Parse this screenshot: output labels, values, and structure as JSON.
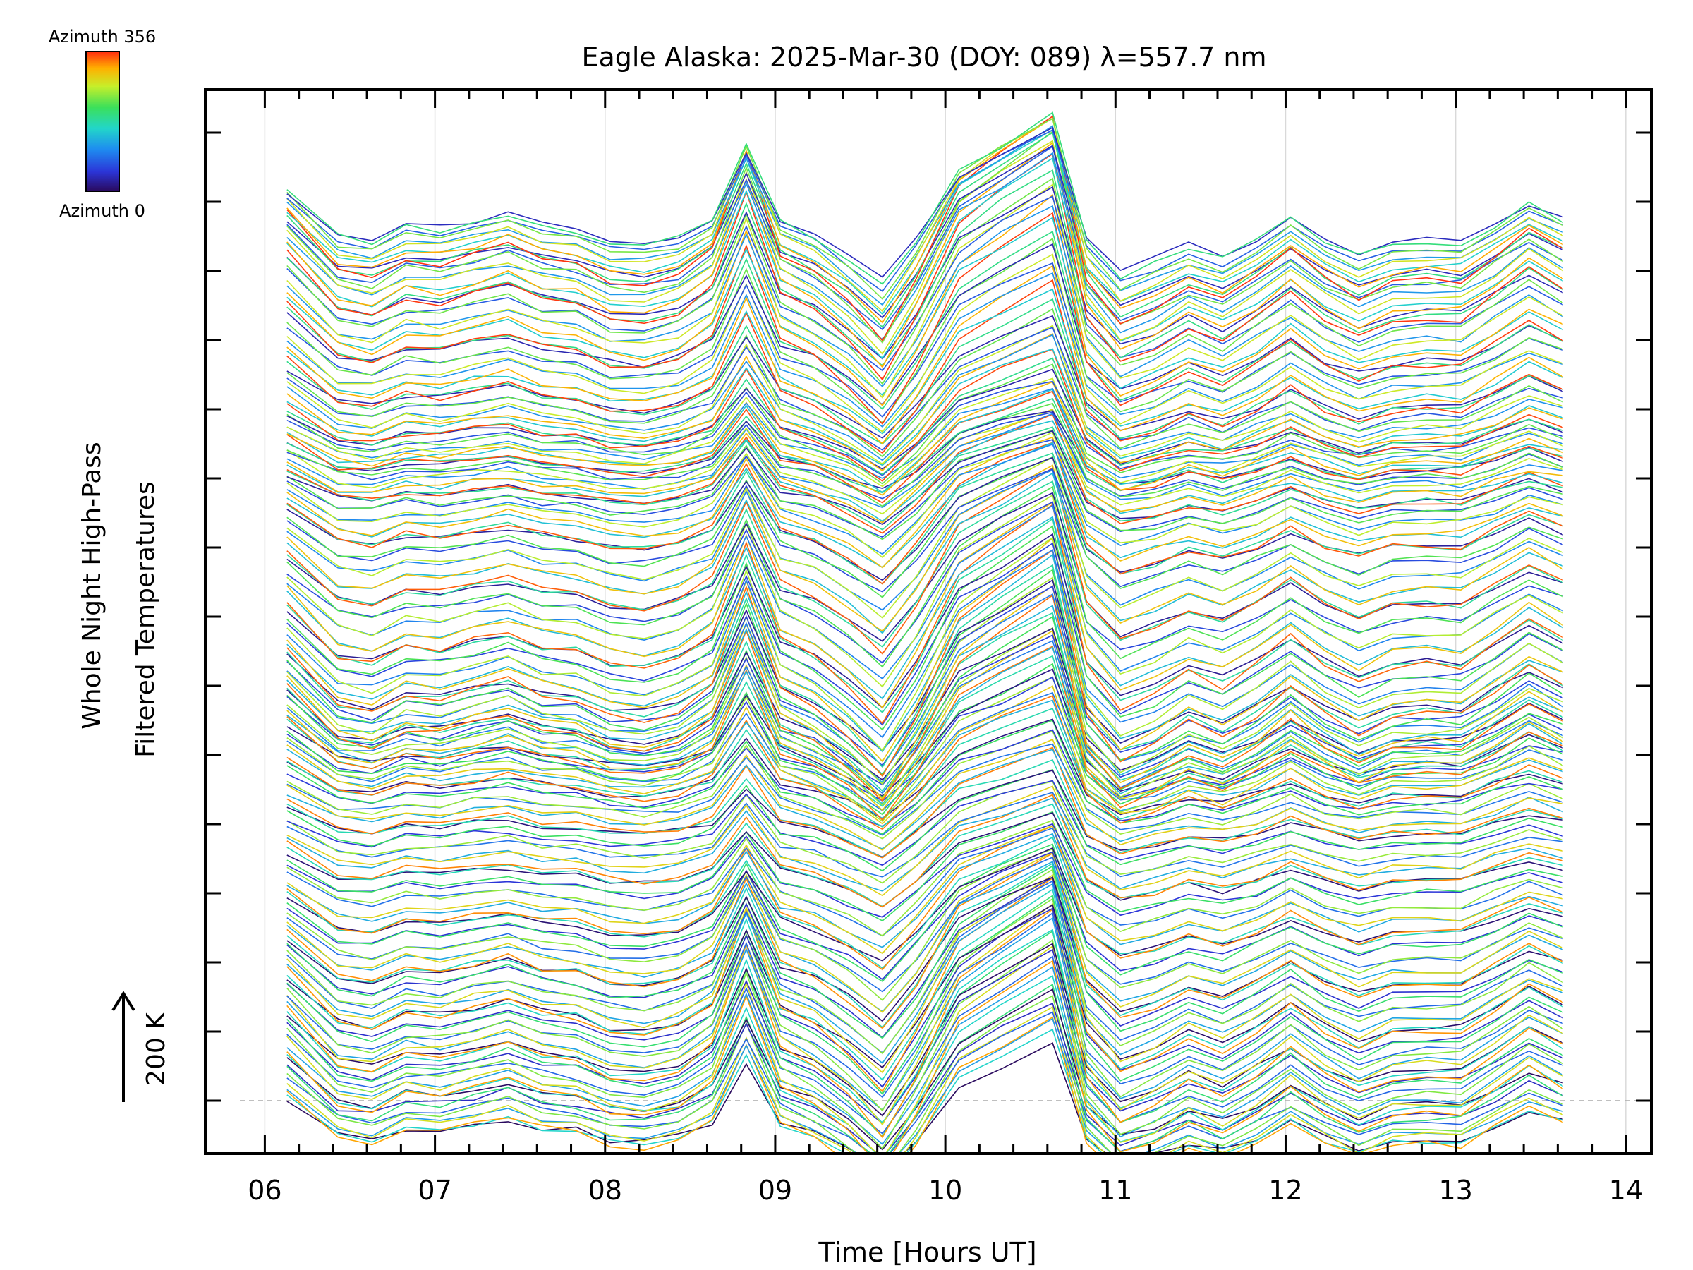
{
  "chart_data": {
    "type": "line",
    "title": "Eagle Alaska: 2025-Mar-30 (DOY: 089) λ=557.7 nm",
    "xlabel": "Time [Hours UT]",
    "ylabel_line1": "Whole Night High-Pass",
    "ylabel_line2": "Filtered Temperatures",
    "scale_label": "200 K",
    "colorbar": {
      "top_label": "Azimuth 356",
      "bottom_label": "Azimuth 0",
      "colormap": "rainbow (purple-blue-cyan-green-yellow-red)"
    },
    "xlim": [
      5.65,
      14.15
    ],
    "xticks": [
      "06",
      "07",
      "08",
      "09",
      "10",
      "11",
      "12",
      "13",
      "14"
    ],
    "x": [
      6.13,
      6.43,
      6.63,
      6.83,
      7.03,
      7.23,
      7.43,
      7.63,
      7.83,
      8.03,
      8.23,
      8.43,
      8.63,
      8.83,
      9.03,
      9.23,
      9.43,
      9.63,
      9.83,
      10.08,
      10.33,
      10.63,
      10.83,
      11.03,
      11.23,
      11.43,
      11.63,
      11.83,
      12.03,
      12.23,
      12.43,
      12.63,
      12.83,
      13.03,
      13.23,
      13.43,
      13.63
    ],
    "shape_note": "Common temporal pattern of stacked, vertically offset traces (relative units)",
    "common_pattern": [
      0,
      -4.0,
      -4.5,
      -3.2,
      -3.5,
      -2.8,
      -2.2,
      -3.2,
      -3.5,
      -4.6,
      -4.9,
      -4.2,
      -2.5,
      4.0,
      -2.8,
      -4.0,
      -6.0,
      -8.5,
      -4.5,
      1.8,
      4.0,
      6.5,
      -4.5,
      -7.5,
      -6.5,
      -5.0,
      -6.0,
      -4.5,
      -2.6,
      -4.5,
      -5.8,
      -4.7,
      -4.5,
      -4.6,
      -3.0,
      -1.2,
      -2.6
    ],
    "n_traces": 200,
    "azimuth_range": [
      0,
      356
    ],
    "ylim": [
      "arbitrary (stacked offsets)"
    ]
  }
}
